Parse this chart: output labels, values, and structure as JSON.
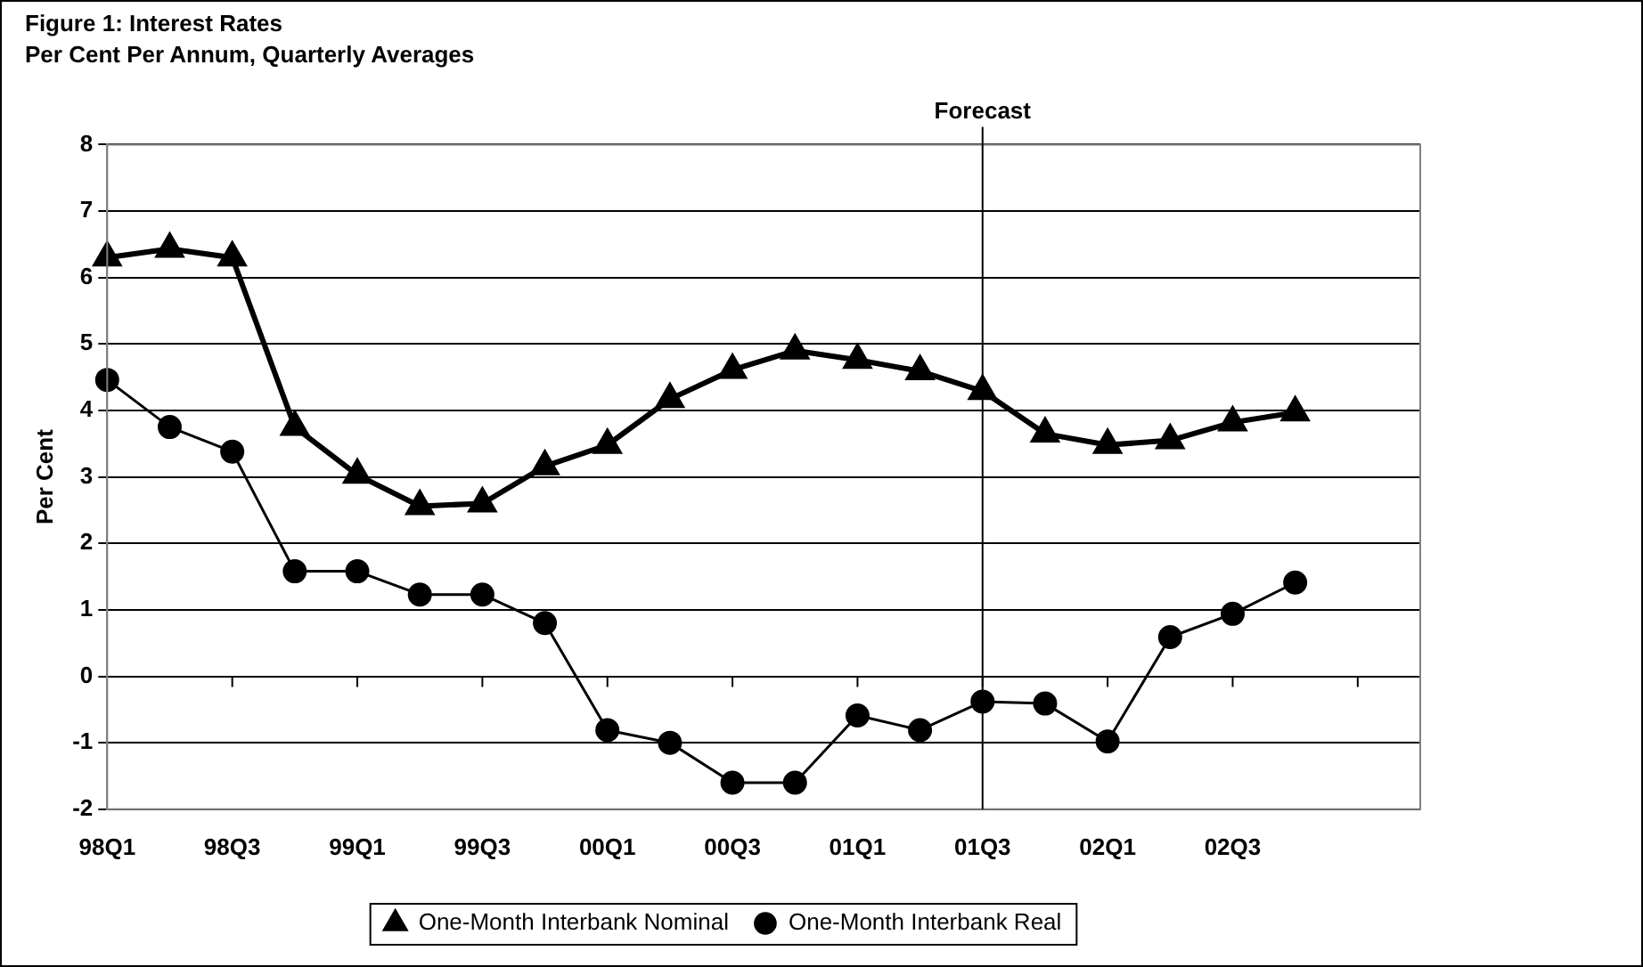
{
  "chart_data": {
    "type": "line",
    "title": "Figure 1: Interest Rates",
    "subtitle": "Per Cent Per Annum, Quarterly Averages",
    "ylabel": "Per Cent",
    "categories": [
      "98Q1",
      null,
      "98Q3",
      null,
      "99Q1",
      null,
      "99Q3",
      null,
      "00Q1",
      null,
      "00Q3",
      null,
      "01Q1",
      null,
      "01Q3",
      null,
      "02Q1",
      null,
      "02Q3",
      null,
      null,
      null
    ],
    "series": [
      {
        "name": "One-Month Interbank Nominal",
        "color": "#000000",
        "marker": "triangle",
        "values": [
          6.3,
          6.43,
          6.3,
          3.75,
          3.03,
          2.56,
          2.6,
          3.16,
          3.48,
          4.17,
          4.61,
          4.9,
          4.76,
          4.59,
          4.29,
          3.65,
          3.48,
          3.55,
          3.82,
          3.97,
          null,
          null
        ]
      },
      {
        "name": "One-Month Interbank Real",
        "color": "#000000",
        "marker": "circle",
        "values": [
          4.46,
          3.75,
          3.38,
          1.58,
          1.58,
          1.23,
          1.23,
          0.8,
          -0.81,
          -1.0,
          -1.6,
          -1.6,
          -0.59,
          -0.81,
          -0.38,
          -0.41,
          -0.98,
          0.59,
          0.94,
          1.41,
          null,
          null
        ]
      }
    ],
    "ylim": [
      -2,
      8
    ],
    "yticks": [
      -2,
      -1,
      0,
      1,
      2,
      3,
      4,
      5,
      6,
      7,
      8
    ],
    "grid": "y",
    "legend": "bottom",
    "line_style": "solid",
    "ref_lines": [
      {
        "axis": "x",
        "value": "01Q3",
        "label": "Forecast",
        "color": "#000000"
      }
    ]
  }
}
